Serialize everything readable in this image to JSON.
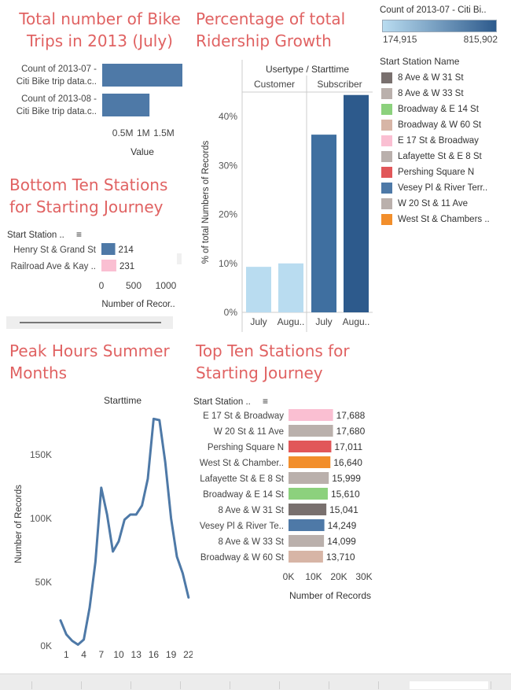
{
  "titles": {
    "trips": [
      "Total number of Bike",
      "Trips in 2013 (July)"
    ],
    "growth": [
      "Percentage of total",
      "Ridership Growth"
    ],
    "bottom": [
      "Bottom Ten Stations",
      "for Starting Journey"
    ],
    "peak": [
      "Peak Hours Summer",
      "Months"
    ],
    "top": [
      "Top Ten Stations for",
      "Starting Journey"
    ]
  },
  "trips_chart": {
    "type": "bar",
    "categories": [
      [
        "Count of 2013-07 -",
        "Citi Bike trip data.c.."
      ],
      [
        "Count of 2013-08 -",
        "Citi Bike trip data.c.."
      ]
    ],
    "values": [
      1950000,
      1150000
    ],
    "xlim": [
      0,
      1950000
    ],
    "ticks": [
      "0.5M",
      "1M",
      "1.5M"
    ],
    "tick_values": [
      500000,
      1000000,
      1500000
    ],
    "xlabel": "Value",
    "color": "#4e79a7"
  },
  "color_legend": {
    "title": "Count of 2013-07 - Citi Bi..",
    "min_label": "174,915",
    "max_label": "815,902",
    "color_from": "#b9dcf0",
    "color_to": "#2d5a8c"
  },
  "station_legend": {
    "title": "Start Station Name",
    "items": [
      {
        "name": "8 Ave & W 31 St",
        "color": "#79706e"
      },
      {
        "name": "8 Ave & W 33 St",
        "color": "#bab0ac"
      },
      {
        "name": "Broadway & E 14 St",
        "color": "#8cd17d"
      },
      {
        "name": "Broadway & W 60 St",
        "color": "#d7b5a6"
      },
      {
        "name": "E 17 St & Broadway",
        "color": "#fabfd2"
      },
      {
        "name": "Lafayette St & E 8 St",
        "color": "#bab0ac"
      },
      {
        "name": "Pershing Square N",
        "color": "#e15759"
      },
      {
        "name": "Vesey Pl & River Terr..",
        "color": "#4e79a7"
      },
      {
        "name": "W 20 St & 11 Ave",
        "color": "#bab0ac"
      },
      {
        "name": "West St & Chambers ..",
        "color": "#f28e2b"
      }
    ]
  },
  "growth_chart": {
    "type": "bar",
    "header": "Usertype / Starttime",
    "groups": [
      "Customer",
      "Subscriber"
    ],
    "categories": [
      "July",
      "Augu..",
      "July",
      "Augu.."
    ],
    "values": [
      9.3,
      10.0,
      36.3,
      44.4
    ],
    "colors": [
      "#b9dcf0",
      "#b9dcf0",
      "#3f6fa0",
      "#2d5a8c"
    ],
    "ylabel": "% of total Numbers of Records",
    "yticks": [
      "0%",
      "10%",
      "20%",
      "30%",
      "40%"
    ],
    "ytick_values": [
      0,
      10,
      20,
      30,
      40
    ],
    "ylim": [
      0,
      45
    ]
  },
  "bottom_chart": {
    "type": "bar",
    "header": "Start Station ..",
    "categories": [
      "Henry St & Grand St",
      "Railroad Ave & Kay .."
    ],
    "values": [
      214,
      231
    ],
    "labels": [
      "214",
      "231"
    ],
    "colors": [
      "#4e79a7",
      "#fabfd2"
    ],
    "xlim": [
      0,
      1000
    ],
    "ticks": [
      "0",
      "500",
      "1000"
    ],
    "tick_values": [
      0,
      500,
      1000
    ],
    "xlabel": "Number of Recor.."
  },
  "peak_chart": {
    "type": "line",
    "header": "Starttime",
    "x": [
      0,
      1,
      2,
      3,
      4,
      5,
      6,
      7,
      8,
      9,
      10,
      11,
      12,
      13,
      14,
      15,
      16,
      17,
      18,
      19,
      20,
      21,
      22,
      23
    ],
    "y": [
      20000,
      9000,
      4000,
      1000,
      5000,
      30000,
      66000,
      124000,
      103000,
      74000,
      82000,
      99000,
      103000,
      103000,
      110000,
      131000,
      178000,
      177000,
      144000,
      100000,
      70000,
      57000,
      38000,
      0
    ],
    "x_points": 23,
    "ylabel": "Number of Records",
    "ylim": [
      0,
      185000
    ],
    "yticks": [
      "0K",
      "50K",
      "100K",
      "150K"
    ],
    "ytick_values": [
      0,
      50000,
      100000,
      150000
    ],
    "xticks": [
      "1",
      "4",
      "7",
      "10",
      "13",
      "16",
      "19",
      "22"
    ],
    "xtick_values": [
      1,
      4,
      7,
      10,
      13,
      16,
      19,
      22
    ],
    "color": "#4e79a7"
  },
  "top_chart": {
    "type": "bar",
    "header": "Start Station ..",
    "categories": [
      "E 17 St & Broadway",
      "W 20 St & 11 Ave",
      "Pershing Square N",
      "West St & Chamber..",
      "Lafayette St & E 8 St",
      "Broadway & E 14 St",
      "8 Ave & W 31 St",
      "Vesey Pl & River Te..",
      "8 Ave & W 33 St",
      "Broadway & W 60 St"
    ],
    "values": [
      17688,
      17680,
      17011,
      16640,
      15999,
      15610,
      15041,
      14249,
      14099,
      13710
    ],
    "labels": [
      "17,688",
      "17,680",
      "17,011",
      "16,640",
      "15,999",
      "15,610",
      "15,041",
      "14,249",
      "14,099",
      "13,710"
    ],
    "colors": [
      "#fabfd2",
      "#bab0ac",
      "#e15759",
      "#f28e2b",
      "#bab0ac",
      "#8cd17d",
      "#79706e",
      "#4e79a7",
      "#bab0ac",
      "#d7b5a6"
    ],
    "xlim": [
      0,
      30000
    ],
    "ticks": [
      "0K",
      "10K",
      "20K",
      "30K"
    ],
    "tick_values": [
      0,
      10000,
      20000,
      30000
    ],
    "xlabel": "Number of Records"
  },
  "chart_data": [
    {
      "type": "bar",
      "title": "Total number of Bike Trips in 2013 (July)",
      "categories": [
        "Count of 2013-07 - Citi Bike trip data.c..",
        "Count of 2013-08 - Citi Bike trip data.c.."
      ],
      "values": [
        1950000,
        1150000
      ],
      "xlabel": "Value"
    },
    {
      "type": "bar",
      "title": "Percentage of total Ridership Growth",
      "categories": [
        "Customer July",
        "Customer Augu..",
        "Subscriber July",
        "Subscriber Augu.."
      ],
      "values": [
        9.3,
        10.0,
        36.3,
        44.4
      ],
      "ylabel": "% of total Numbers of Records",
      "ylim": [
        0,
        45
      ]
    },
    {
      "type": "bar",
      "title": "Bottom Ten Stations for Starting Journey",
      "categories": [
        "Henry St & Grand St",
        "Railroad Ave & Kay .."
      ],
      "values": [
        214,
        231
      ],
      "xlabel": "Number of Recor.."
    },
    {
      "type": "line",
      "title": "Peak Hours Summer Months",
      "x": [
        0,
        1,
        2,
        3,
        4,
        5,
        6,
        7,
        8,
        9,
        10,
        11,
        12,
        13,
        14,
        15,
        16,
        17,
        18,
        19,
        20,
        21,
        22,
        23
      ],
      "y": [
        20000,
        9000,
        4000,
        1000,
        5000,
        30000,
        66000,
        124000,
        103000,
        74000,
        82000,
        99000,
        103000,
        103000,
        110000,
        131000,
        178000,
        177000,
        144000,
        100000,
        70000,
        57000,
        38000,
        0
      ],
      "ylabel": "Number of Records"
    },
    {
      "type": "bar",
      "title": "Top Ten Stations for Starting Journey",
      "categories": [
        "E 17 St & Broadway",
        "W 20 St & 11 Ave",
        "Pershing Square N",
        "West St & Chamber..",
        "Lafayette St & E 8 St",
        "Broadway & E 14 St",
        "8 Ave & W 31 St",
        "Vesey Pl & River Te..",
        "8 Ave & W 33 St",
        "Broadway & W 60 St"
      ],
      "values": [
        17688,
        17680,
        17011,
        16640,
        15999,
        15610,
        15041,
        14249,
        14099,
        13710
      ],
      "xlabel": "Number of Records"
    }
  ]
}
